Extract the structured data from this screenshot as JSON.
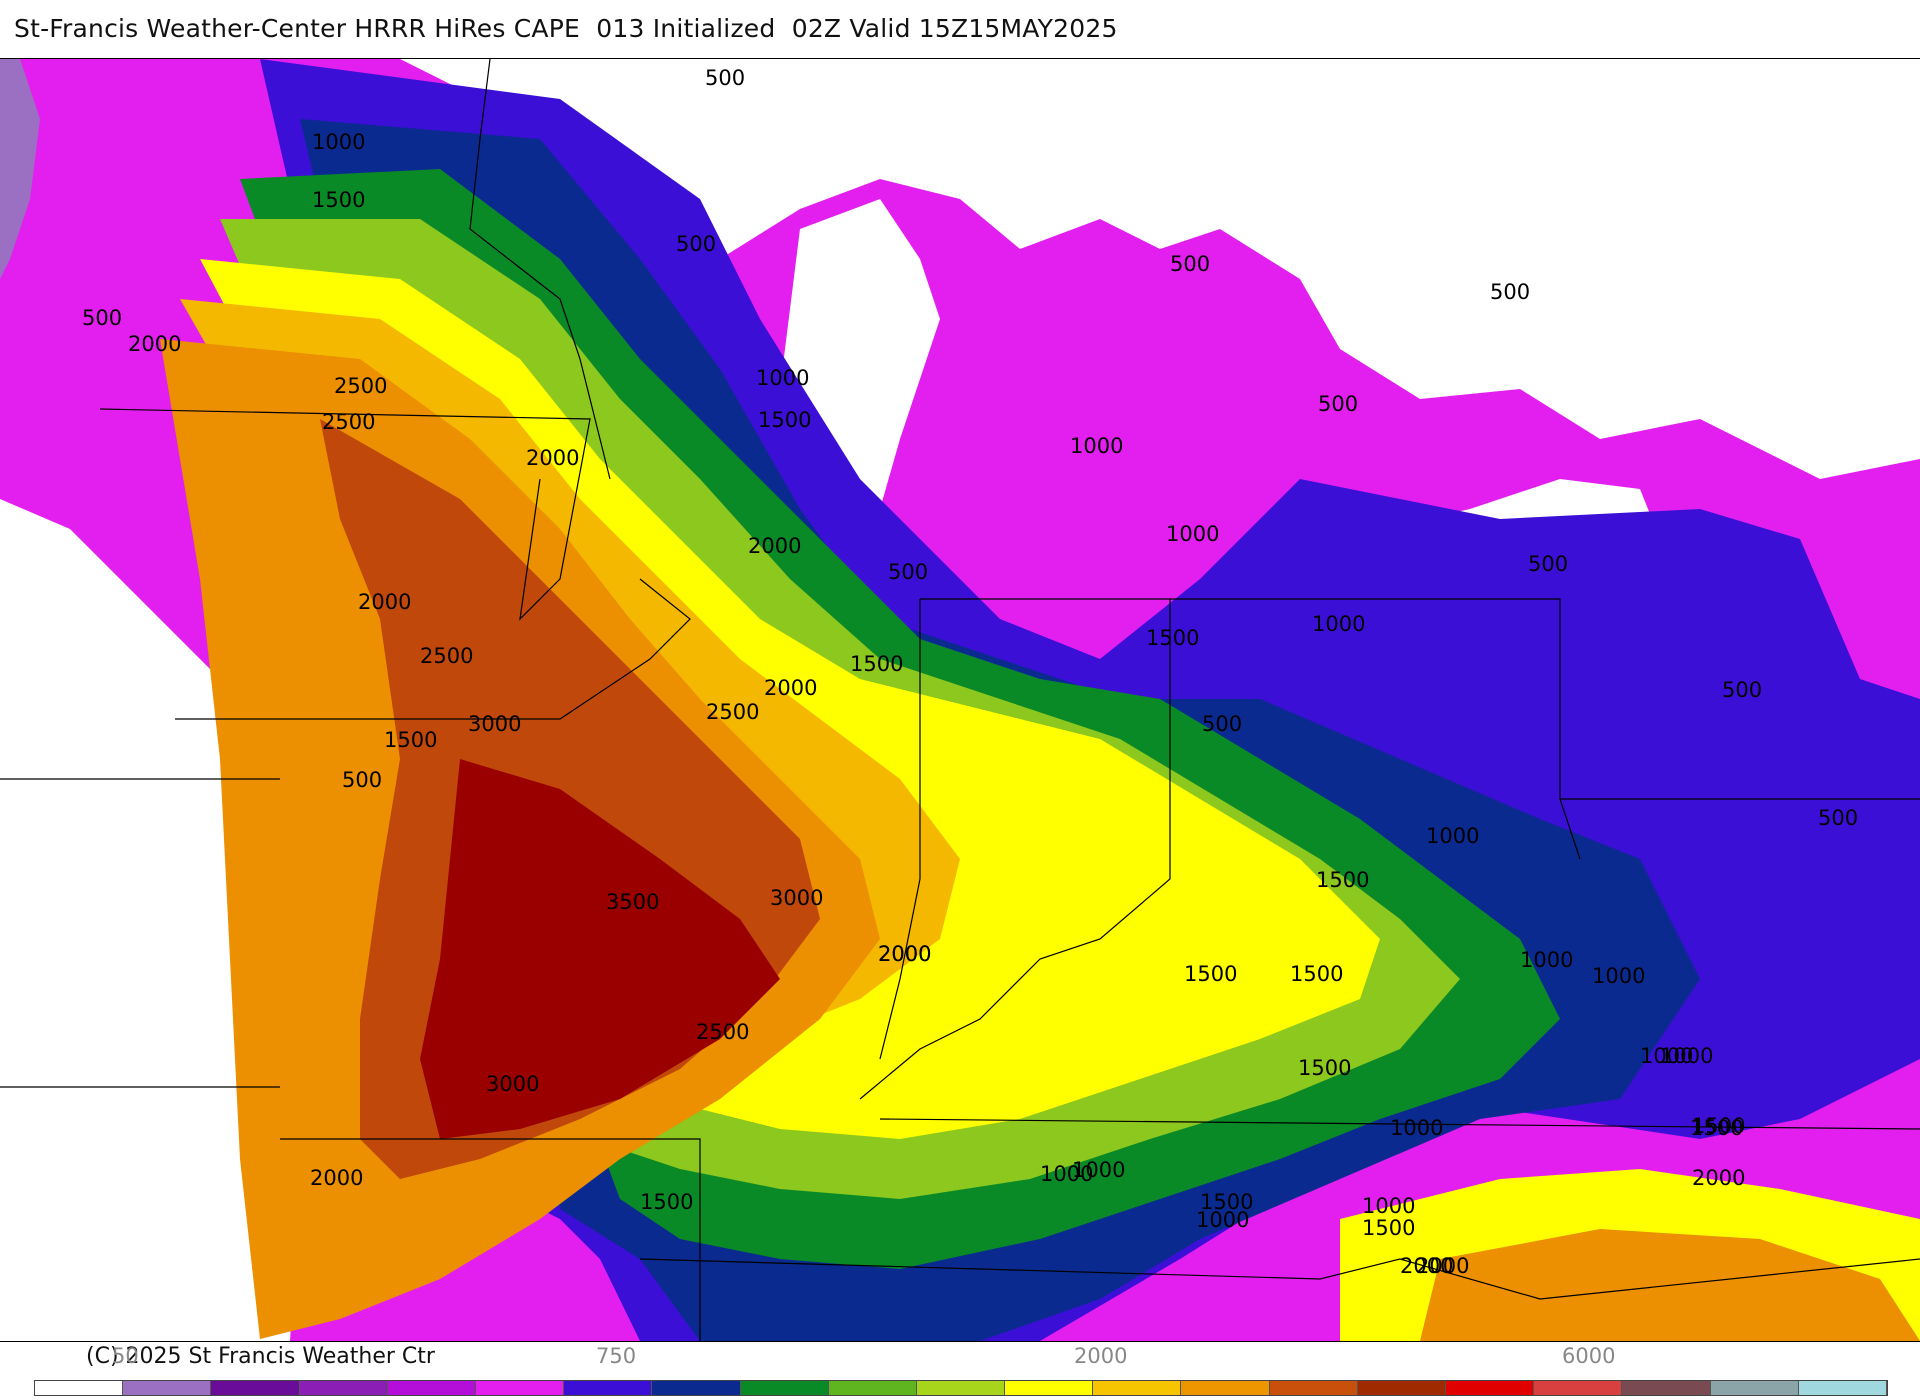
{
  "header": {
    "title": "St-Francis Weather-Center HRRR HiRes CAPE  013 Initialized  02Z Valid 15Z15MAY2025"
  },
  "map": {
    "region": "Central & Eastern US / Great Lakes",
    "field": "CAPE",
    "contour_labels": [
      "500",
      "1000",
      "1500",
      "2000",
      "2500",
      "2500",
      "2000",
      "2000",
      "2500",
      "1500",
      "500",
      "3000",
      "3500",
      "3000",
      "2500",
      "3000",
      "2000",
      "1500",
      "1000",
      "2000",
      "2500",
      "2000",
      "1500",
      "500",
      "1000",
      "1500",
      "2000",
      "500",
      "500",
      "1000",
      "1000",
      "1500",
      "1500",
      "2000",
      "1500",
      "1500",
      "1500",
      "1000",
      "1000",
      "1000",
      "1000",
      "1000",
      "1500",
      "1000",
      "500",
      "500",
      "500",
      "500",
      "500",
      "1000",
      "1000",
      "1500",
      "2000",
      "2000",
      "1500",
      "1000",
      "500",
      "500",
      "1500",
      "2000",
      "1000"
    ]
  },
  "colorbar": {
    "colors": [
      "#ffffff",
      "#9b6fc2",
      "#6a0c9a",
      "#8b1fb5",
      "#b40fd8",
      "#e31ff0",
      "#3c0fd6",
      "#0a2a8f",
      "#0a8a27",
      "#5fb51f",
      "#a6d51b",
      "#ffff00",
      "#f7c400",
      "#ee9600",
      "#c8500a",
      "#a02a00",
      "#e00000",
      "#d84040",
      "#7a4a52",
      "#8aa4a8",
      "#a0d8e0"
    ],
    "labels": [
      "50",
      "750",
      "2000",
      "6000"
    ],
    "copyright": "(C) 2025 St Francis Weather Ctr"
  },
  "legend_colors": {
    "white": "#ffffff",
    "lavender": "#9b6fc2",
    "magenta": "#e31ff0",
    "blue": "#3c0fd6",
    "navy": "#0a2a8f",
    "green": "#0a8a27",
    "lime": "#8cc81e",
    "yellow": "#ffff00",
    "gold": "#f5b800",
    "orange": "#ec8f00",
    "brown": "#c0480a",
    "maroon": "#9a0000"
  }
}
